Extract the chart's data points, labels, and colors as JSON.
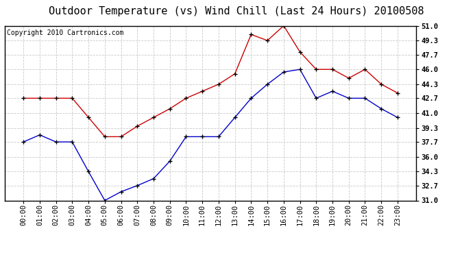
{
  "title": "Outdoor Temperature (vs) Wind Chill (Last 24 Hours) 20100508",
  "copyright_text": "Copyright 2010 Cartronics.com",
  "x_labels": [
    "00:00",
    "01:00",
    "02:00",
    "03:00",
    "04:00",
    "05:00",
    "06:00",
    "07:00",
    "08:00",
    "09:00",
    "10:00",
    "11:00",
    "12:00",
    "13:00",
    "14:00",
    "15:00",
    "16:00",
    "17:00",
    "18:00",
    "19:00",
    "20:00",
    "21:00",
    "22:00",
    "23:00"
  ],
  "temp_red": [
    42.7,
    42.7,
    42.7,
    42.7,
    40.5,
    38.3,
    38.3,
    39.5,
    40.5,
    41.5,
    42.7,
    43.5,
    44.3,
    45.5,
    50.0,
    49.3,
    51.0,
    48.0,
    46.0,
    46.0,
    45.0,
    46.0,
    44.3,
    43.3
  ],
  "wind_chill_blue": [
    37.7,
    38.5,
    37.7,
    37.7,
    34.3,
    31.0,
    32.0,
    32.7,
    33.5,
    35.5,
    38.3,
    38.3,
    38.3,
    40.5,
    42.7,
    44.3,
    45.7,
    46.0,
    42.7,
    43.5,
    42.7,
    42.7,
    41.5,
    40.5
  ],
  "y_ticks": [
    31.0,
    32.7,
    34.3,
    36.0,
    37.7,
    39.3,
    41.0,
    42.7,
    44.3,
    46.0,
    47.7,
    49.3,
    51.0
  ],
  "y_min": 31.0,
  "y_max": 51.0,
  "red_color": "#cc0000",
  "blue_color": "#0000cc",
  "background_color": "#ffffff",
  "grid_color": "#c8c8c8",
  "title_fontsize": 11,
  "copyright_fontsize": 7,
  "tick_fontsize": 7.5
}
